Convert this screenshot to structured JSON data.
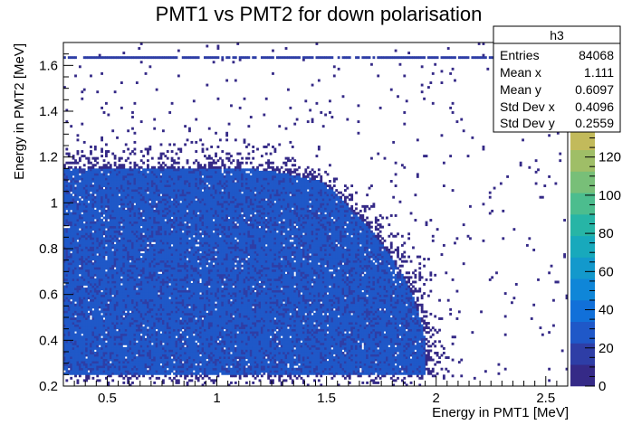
{
  "chart_data": {
    "type": "heatmap",
    "title": "PMT1 vs PMT2 for down polarisation",
    "xlabel": "Energy in PMT1 [MeV]",
    "ylabel": "Energy in PMT2 [MeV]",
    "xlim": [
      0.3,
      2.6
    ],
    "ylim": [
      0.2,
      1.7
    ],
    "x_ticks": [
      0.5,
      1,
      1.5,
      2,
      2.5
    ],
    "x_tick_labels": [
      "0.5",
      "1",
      "1.5",
      "2",
      "2.5"
    ],
    "y_ticks": [
      0.2,
      0.4,
      0.6,
      0.8,
      1,
      1.2,
      1.4,
      1.6
    ],
    "y_tick_labels": [
      "0.2",
      "0.4",
      "0.6",
      "0.8",
      "1",
      "1.2",
      "1.4",
      "1.6"
    ],
    "colorbar": {
      "range": [
        0,
        180
      ],
      "ticks": [
        0,
        20,
        40,
        60,
        80,
        100,
        120,
        140
      ],
      "tick_labels": [
        "0",
        "20",
        "40",
        "60",
        "80",
        "100",
        "120",
        "140"
      ],
      "palette": [
        "#352a87",
        "#2e3ea6",
        "#1f58c8",
        "#1170d9",
        "#0f86d8",
        "#1399cc",
        "#18a9bc",
        "#27b5a6",
        "#4cbd8e",
        "#78bf78",
        "#9fbe67",
        "#c2ba5b",
        "#dcb852",
        "#f0be48",
        "#f9d83b",
        "#f9fb0e"
      ]
    },
    "features": {
      "bulk_region": {
        "x_range": [
          0.3,
          1.95
        ],
        "y_range": [
          0.25,
          1.15
        ],
        "typical_count": 20
      },
      "saturation_line_y": 1.63
    },
    "stats_box": {
      "name": "h3",
      "rows": [
        {
          "label": "Entries",
          "value": "84068"
        },
        {
          "label": "Mean x",
          "value": "1.111"
        },
        {
          "label": "Mean y",
          "value": "0.6097"
        },
        {
          "label": "Std Dev x",
          "value": "0.4096"
        },
        {
          "label": "Std Dev y",
          "value": "0.2559"
        }
      ]
    },
    "grid": false
  }
}
